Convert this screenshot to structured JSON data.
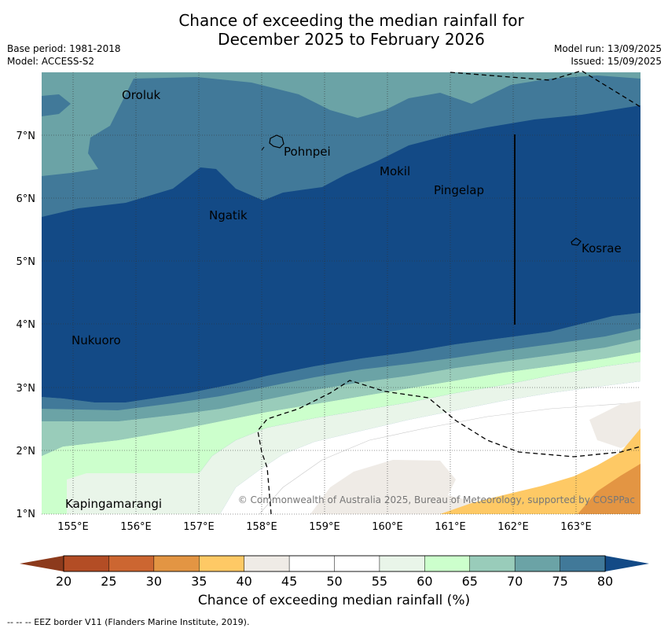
{
  "header": {
    "title_line1": "Chance of exceeding the median rainfall for",
    "title_line2": "December 2025 to February 2026",
    "base_period": "Base period: 1981-2018",
    "model": "Model: ACCESS-S2",
    "model_run": "Model run: 13/09/2025",
    "issued": "Issued: 15/09/2025"
  },
  "map": {
    "lon_ticks": [
      "155°E",
      "156°E",
      "157°E",
      "158°E",
      "159°E",
      "160°E",
      "161°E",
      "162°E",
      "163°E"
    ],
    "lat_ticks": [
      "1°N",
      "2°N",
      "3°N",
      "4°N",
      "5°N",
      "6°N",
      "7°N"
    ],
    "places": [
      {
        "name": "Oroluk"
      },
      {
        "name": "Pohnpei"
      },
      {
        "name": "Mokil"
      },
      {
        "name": "Pingelap"
      },
      {
        "name": "Ngatik"
      },
      {
        "name": "Kosrae"
      },
      {
        "name": "Nukuoro"
      },
      {
        "name": "Kapingamarangi"
      }
    ],
    "copyright": "© Commonwealth of Australia 2025, Bureau of Meteorology, supported by COSPPac"
  },
  "colorbar": {
    "ticks": [
      "20",
      "25",
      "30",
      "35",
      "40",
      "45",
      "50",
      "55",
      "60",
      "65",
      "70",
      "75",
      "80"
    ],
    "colors": [
      "#b34d25",
      "#cc6631",
      "#e39543",
      "#fec965",
      "#efebe6",
      "#ffffff",
      "#ffffff",
      "#e9f5e9",
      "#ccffcc",
      "#99ccba",
      "#6ba3a6",
      "#417999"
    ],
    "under_color": "#8c3a1c",
    "over_color": "#134a86",
    "label": "Chance of exceeding median rainfall (%)"
  },
  "footnote": "--  --  -- EEZ border V11 (Flanders Marine Institute, 2019)."
}
